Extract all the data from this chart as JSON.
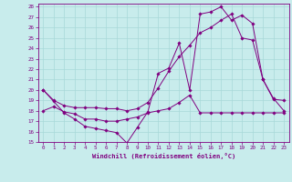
{
  "xlabel": "Windchill (Refroidissement éolien,°C)",
  "background_color": "#c8ecec",
  "line_color": "#800080",
  "grid_color": "#a8d8d8",
  "xlim": [
    -0.5,
    23.5
  ],
  "ylim": [
    15,
    28.3
  ],
  "line1_x": [
    0,
    1,
    2,
    3,
    4,
    5,
    6,
    7,
    8,
    9,
    10,
    11,
    12,
    13,
    14,
    15,
    16,
    17,
    18,
    19,
    20,
    21,
    22,
    23
  ],
  "line1_y": [
    20.0,
    18.9,
    17.8,
    17.2,
    16.5,
    16.3,
    16.1,
    15.9,
    14.9,
    16.4,
    17.9,
    21.6,
    22.1,
    24.5,
    20.0,
    27.3,
    27.5,
    28.0,
    26.7,
    27.2,
    26.4,
    21.0,
    19.1,
    19.0
  ],
  "line2_x": [
    0,
    1,
    2,
    3,
    4,
    5,
    6,
    7,
    8,
    9,
    10,
    11,
    12,
    13,
    14,
    15,
    16,
    17,
    18,
    19,
    20,
    21,
    22,
    23
  ],
  "line2_y": [
    18.0,
    18.4,
    17.9,
    17.7,
    17.2,
    17.2,
    17.0,
    17.0,
    17.2,
    17.4,
    17.8,
    18.0,
    18.2,
    18.8,
    19.5,
    17.8,
    17.8,
    17.8,
    17.8,
    17.8,
    17.8,
    17.8,
    17.8,
    17.8
  ],
  "line3_x": [
    0,
    1,
    2,
    3,
    4,
    5,
    6,
    7,
    8,
    9,
    10,
    11,
    12,
    13,
    14,
    15,
    16,
    17,
    18,
    19,
    20,
    21,
    22,
    23
  ],
  "line3_y": [
    20.0,
    19.0,
    18.5,
    18.3,
    18.3,
    18.3,
    18.2,
    18.2,
    18.0,
    18.2,
    18.8,
    20.2,
    21.8,
    23.2,
    24.3,
    25.5,
    26.0,
    26.7,
    27.3,
    25.0,
    24.8,
    21.0,
    19.2,
    18.0
  ],
  "yticks": [
    15,
    16,
    17,
    18,
    19,
    20,
    21,
    22,
    23,
    24,
    25,
    26,
    27,
    28
  ],
  "xticks": [
    0,
    1,
    2,
    3,
    4,
    5,
    6,
    7,
    8,
    9,
    10,
    11,
    12,
    13,
    14,
    15,
    16,
    17,
    18,
    19,
    20,
    21,
    22,
    23
  ]
}
